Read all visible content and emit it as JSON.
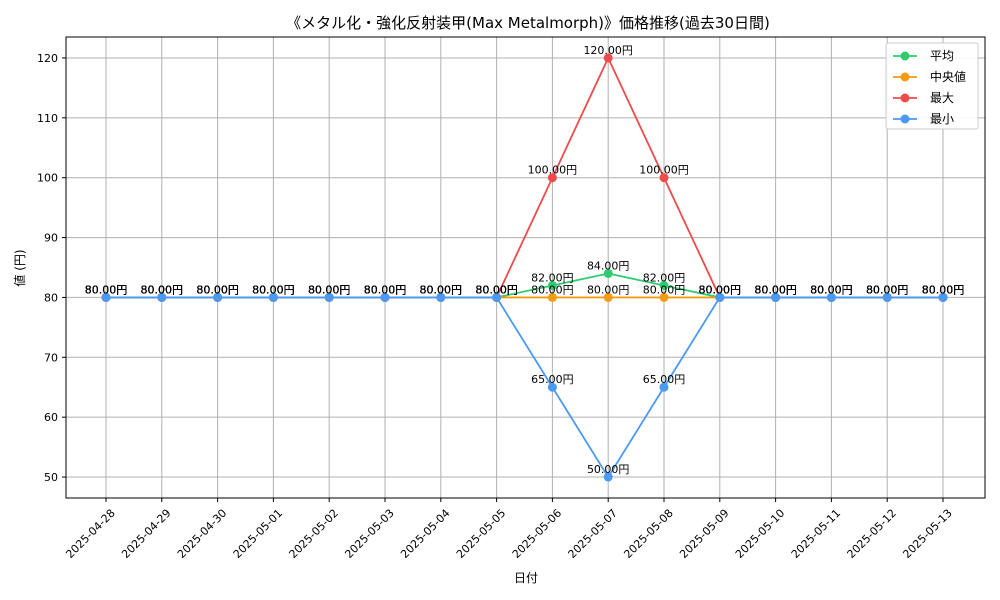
{
  "chart_data": {
    "type": "line",
    "title": "《メタル化・強化反射装甲(Max Metalmorph)》価格推移(過去30日間)",
    "xlabel": "日付",
    "ylabel": "値 (円)",
    "categories": [
      "2025-04-28",
      "2025-04-29",
      "2025-04-30",
      "2025-05-01",
      "2025-05-02",
      "2025-05-03",
      "2025-05-04",
      "2025-05-05",
      "2025-05-06",
      "2025-05-07",
      "2025-05-08",
      "2025-05-09",
      "2025-05-10",
      "2025-05-11",
      "2025-05-12",
      "2025-05-13"
    ],
    "ylim": [
      46.5,
      123.5
    ],
    "yticks": [
      50,
      60,
      70,
      80,
      90,
      100,
      110,
      120
    ],
    "grid": true,
    "legend_position": "top-right",
    "label_suffix": "円",
    "series": [
      {
        "name": "平均",
        "color": "#2ecc71",
        "values": [
          80,
          80,
          80,
          80,
          80,
          80,
          80,
          80,
          82,
          84,
          82,
          80,
          80,
          80,
          80,
          80
        ]
      },
      {
        "name": "中央値",
        "color": "#f39c12",
        "values": [
          80,
          80,
          80,
          80,
          80,
          80,
          80,
          80,
          80,
          80,
          80,
          80,
          80,
          80,
          80,
          80
        ]
      },
      {
        "name": "最大",
        "color": "#ef4b4b",
        "values": [
          80,
          80,
          80,
          80,
          80,
          80,
          80,
          80,
          100,
          120,
          100,
          80,
          80,
          80,
          80,
          80
        ]
      },
      {
        "name": "最小",
        "color": "#4a9af5",
        "values": [
          80,
          80,
          80,
          80,
          80,
          80,
          80,
          80,
          65,
          50,
          65,
          80,
          80,
          80,
          80,
          80
        ]
      }
    ]
  }
}
